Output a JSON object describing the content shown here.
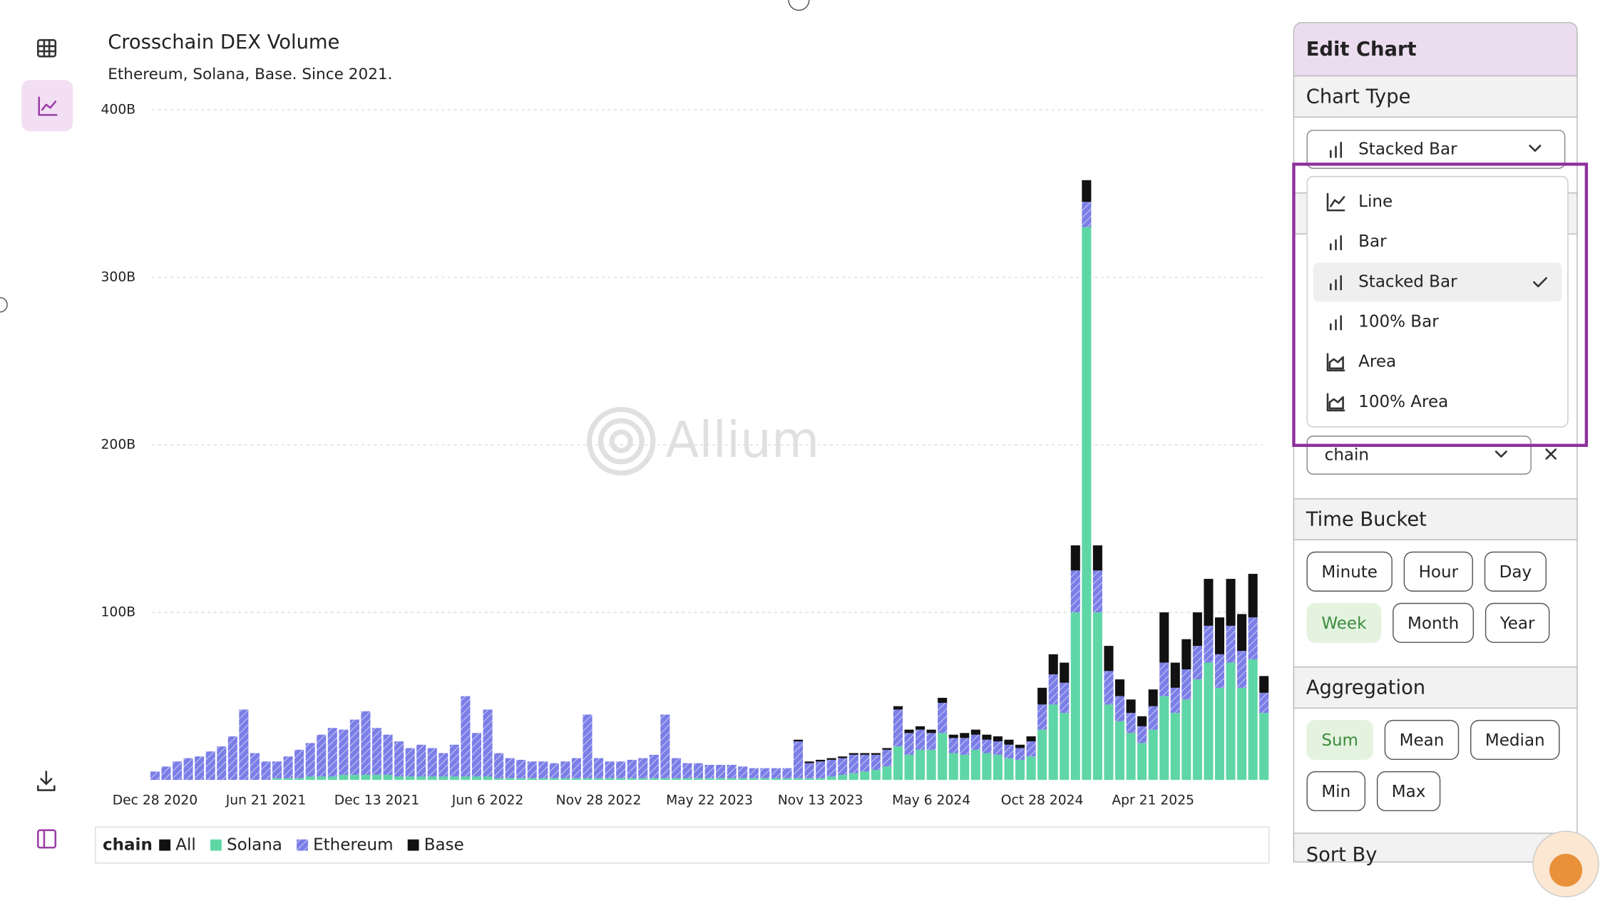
{
  "chart_data": {
    "type": "bar",
    "stacked": true,
    "title": "Crosschain DEX Volume",
    "subtitle": "Ethereum, Solana, Base. Since 2021.",
    "categories": [
      "Dec 28 2020",
      null,
      null,
      null,
      null,
      null,
      null,
      null,
      null,
      null,
      "Jun 21 2021",
      null,
      null,
      null,
      null,
      null,
      null,
      null,
      null,
      null,
      "Dec 13 2021",
      null,
      null,
      null,
      null,
      null,
      null,
      null,
      null,
      null,
      "Jun 6 2022",
      null,
      null,
      null,
      null,
      null,
      null,
      null,
      null,
      null,
      "Nov 28 2022",
      null,
      null,
      null,
      null,
      null,
      null,
      null,
      null,
      null,
      "May 22 2023",
      null,
      null,
      null,
      null,
      null,
      null,
      null,
      null,
      null,
      "Nov 13 2023",
      null,
      null,
      null,
      null,
      null,
      null,
      null,
      null,
      null,
      "May 6 2024",
      null,
      null,
      null,
      null,
      null,
      null,
      null,
      null,
      null,
      "Oct 28 2024",
      null,
      null,
      null,
      null,
      null,
      null,
      null,
      null,
      null,
      "Apr 21 2025",
      null,
      null,
      null,
      null,
      null,
      null,
      null,
      null,
      null,
      null
    ],
    "series": [
      {
        "name": "All",
        "color": "#111111",
        "values": [
          0,
          0,
          0,
          0,
          0,
          0,
          0,
          0,
          0,
          0,
          0,
          0,
          0,
          0,
          0,
          0,
          0,
          0,
          0,
          0,
          0,
          0,
          0,
          0,
          0,
          0,
          0,
          0,
          0,
          0,
          0,
          0,
          0,
          0,
          0,
          0,
          0,
          0,
          0,
          0,
          0,
          0,
          0,
          0,
          0,
          0,
          0,
          0,
          0,
          0,
          0,
          0,
          0,
          0,
          0,
          0,
          0,
          0,
          0,
          0,
          0,
          0,
          0,
          0,
          0,
          0,
          0,
          0,
          0,
          0,
          0,
          0,
          0,
          0,
          0,
          0,
          0,
          0,
          0,
          0,
          0,
          0,
          0,
          0,
          0,
          0,
          0,
          0,
          0,
          0,
          0,
          0,
          0,
          0,
          0,
          0,
          0,
          0,
          0,
          0,
          0
        ]
      },
      {
        "name": "Solana",
        "color": "#5fd6a6",
        "values": [
          0,
          0,
          0,
          0,
          0,
          0,
          0,
          0,
          0,
          0,
          0,
          1,
          1,
          1,
          2,
          2,
          2,
          3,
          3,
          3,
          3,
          3,
          2,
          2,
          2,
          2,
          2,
          2,
          2,
          2,
          2,
          1,
          1,
          1,
          1,
          1,
          1,
          1,
          1,
          1,
          1,
          1,
          1,
          1,
          1,
          1,
          1,
          1,
          1,
          1,
          1,
          1,
          1,
          1,
          1,
          1,
          1,
          1,
          1,
          1,
          1,
          2,
          3,
          4,
          5,
          6,
          8,
          20,
          15,
          18,
          18,
          28,
          16,
          15,
          18,
          16,
          15,
          13,
          12,
          14,
          30,
          45,
          40,
          100,
          330,
          100,
          45,
          35,
          28,
          22,
          30,
          50,
          40,
          48,
          60,
          70,
          55,
          70,
          55,
          72,
          40
        ]
      },
      {
        "name": "Ethereum",
        "color": "#7b7ee6",
        "hatched": true,
        "values": [
          5,
          8,
          11,
          13,
          14,
          17,
          20,
          26,
          42,
          16,
          11,
          10,
          13,
          17,
          20,
          25,
          29,
          27,
          33,
          38,
          28,
          24,
          21,
          17,
          19,
          17,
          14,
          19,
          48,
          26,
          40,
          15,
          12,
          11,
          10,
          10,
          9,
          10,
          12,
          38,
          12,
          10,
          10,
          11,
          12,
          14,
          38,
          12,
          9,
          9,
          8,
          8,
          8,
          7,
          6,
          6,
          6,
          6,
          22,
          9,
          10,
          10,
          10,
          11,
          10,
          9,
          10,
          22,
          13,
          12,
          10,
          18,
          9,
          10,
          9,
          8,
          8,
          8,
          7,
          9,
          15,
          18,
          18,
          25,
          15,
          25,
          20,
          15,
          12,
          10,
          14,
          20,
          15,
          18,
          20,
          22,
          20,
          22,
          22,
          25,
          12
        ]
      },
      {
        "name": "Base",
        "color": "#111111",
        "values": [
          0,
          0,
          0,
          0,
          0,
          0,
          0,
          0,
          0,
          0,
          0,
          0,
          0,
          0,
          0,
          0,
          0,
          0,
          0,
          0,
          0,
          0,
          0,
          0,
          0,
          0,
          0,
          0,
          0,
          0,
          0,
          0,
          0,
          0,
          0,
          0,
          0,
          0,
          0,
          0,
          0,
          0,
          0,
          0,
          0,
          0,
          0,
          0,
          0,
          0,
          0,
          0,
          0,
          0,
          0,
          0,
          0,
          0,
          1,
          1,
          1,
          1,
          1,
          1,
          1,
          1,
          1,
          2,
          2,
          2,
          2,
          3,
          2,
          3,
          3,
          3,
          3,
          3,
          2,
          3,
          10,
          12,
          12,
          15,
          13,
          15,
          15,
          10,
          8,
          6,
          10,
          30,
          15,
          18,
          20,
          28,
          22,
          28,
          22,
          26,
          10
        ]
      }
    ],
    "ylim": [
      0,
      400
    ],
    "yticks": [
      {
        "value": 100,
        "label": "100B"
      },
      {
        "value": 200,
        "label": "200B"
      },
      {
        "value": 300,
        "label": "300B"
      },
      {
        "value": 400,
        "label": "400B"
      }
    ],
    "grid": true,
    "legend_title": "chain",
    "watermark": "Allium"
  },
  "edit_panel": {
    "title": "Edit Chart",
    "chart_type_label": "Chart Type",
    "chart_type_selected": "Stacked Bar",
    "chart_type_options": [
      "Line",
      "Bar",
      "Stacked Bar",
      "100% Bar",
      "Area",
      "100% Area"
    ],
    "chart_type_checked": 2,
    "group_by": "chain",
    "time_bucket_label": "Time Bucket",
    "time_buckets": [
      "Minute",
      "Hour",
      "Day",
      "Week",
      "Month",
      "Year"
    ],
    "time_bucket_active": 3,
    "aggregation_label": "Aggregation",
    "aggregations": [
      "Sum",
      "Mean",
      "Median",
      "Min",
      "Max"
    ],
    "aggregation_active": 0,
    "sort_by_label": "Sort By"
  }
}
